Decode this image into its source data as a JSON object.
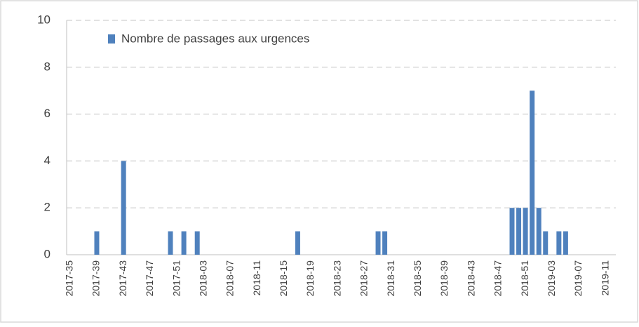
{
  "chart_data": {
    "type": "bar",
    "categories": [
      "2017-35",
      null,
      null,
      null,
      "2017-39",
      null,
      null,
      null,
      "2017-43",
      null,
      null,
      null,
      "2017-47",
      null,
      null,
      null,
      "2017-51",
      null,
      null,
      null,
      "2018-03",
      null,
      null,
      null,
      "2018-07",
      null,
      null,
      null,
      "2018-11",
      null,
      null,
      null,
      "2018-15",
      null,
      null,
      null,
      "2018-19",
      null,
      null,
      null,
      "2018-23",
      null,
      null,
      null,
      "2018-27",
      null,
      null,
      null,
      "2018-31",
      null,
      null,
      null,
      "2018-35",
      null,
      null,
      null,
      "2018-39",
      null,
      null,
      null,
      "2018-43",
      null,
      null,
      null,
      "2018-47",
      null,
      null,
      null,
      "2018-51",
      null,
      null,
      null,
      "2019-03",
      null,
      null,
      null,
      "2019-07",
      null,
      null,
      null,
      "2019-11",
      null
    ],
    "series": [
      {
        "name": "Nombre de passages aux urgences",
        "color": "#4f81bd",
        "values": [
          0,
          0,
          0,
          0,
          1,
          0,
          0,
          0,
          4,
          0,
          0,
          0,
          0,
          0,
          0,
          1,
          0,
          1,
          0,
          1,
          0,
          0,
          0,
          0,
          0,
          0,
          0,
          0,
          0,
          0,
          0,
          0,
          0,
          0,
          1,
          0,
          0,
          0,
          0,
          0,
          0,
          0,
          0,
          0,
          0,
          0,
          1,
          1,
          0,
          0,
          0,
          0,
          0,
          0,
          0,
          0,
          0,
          0,
          0,
          0,
          0,
          0,
          0,
          0,
          0,
          0,
          2,
          2,
          2,
          7,
          2,
          1,
          0,
          1,
          1,
          0,
          0,
          0,
          0,
          0,
          0,
          0
        ]
      }
    ],
    "ylim": [
      0,
      10
    ],
    "yticks": [
      0,
      2,
      4,
      6,
      8,
      10
    ],
    "grid": true,
    "legend": "top-left"
  }
}
